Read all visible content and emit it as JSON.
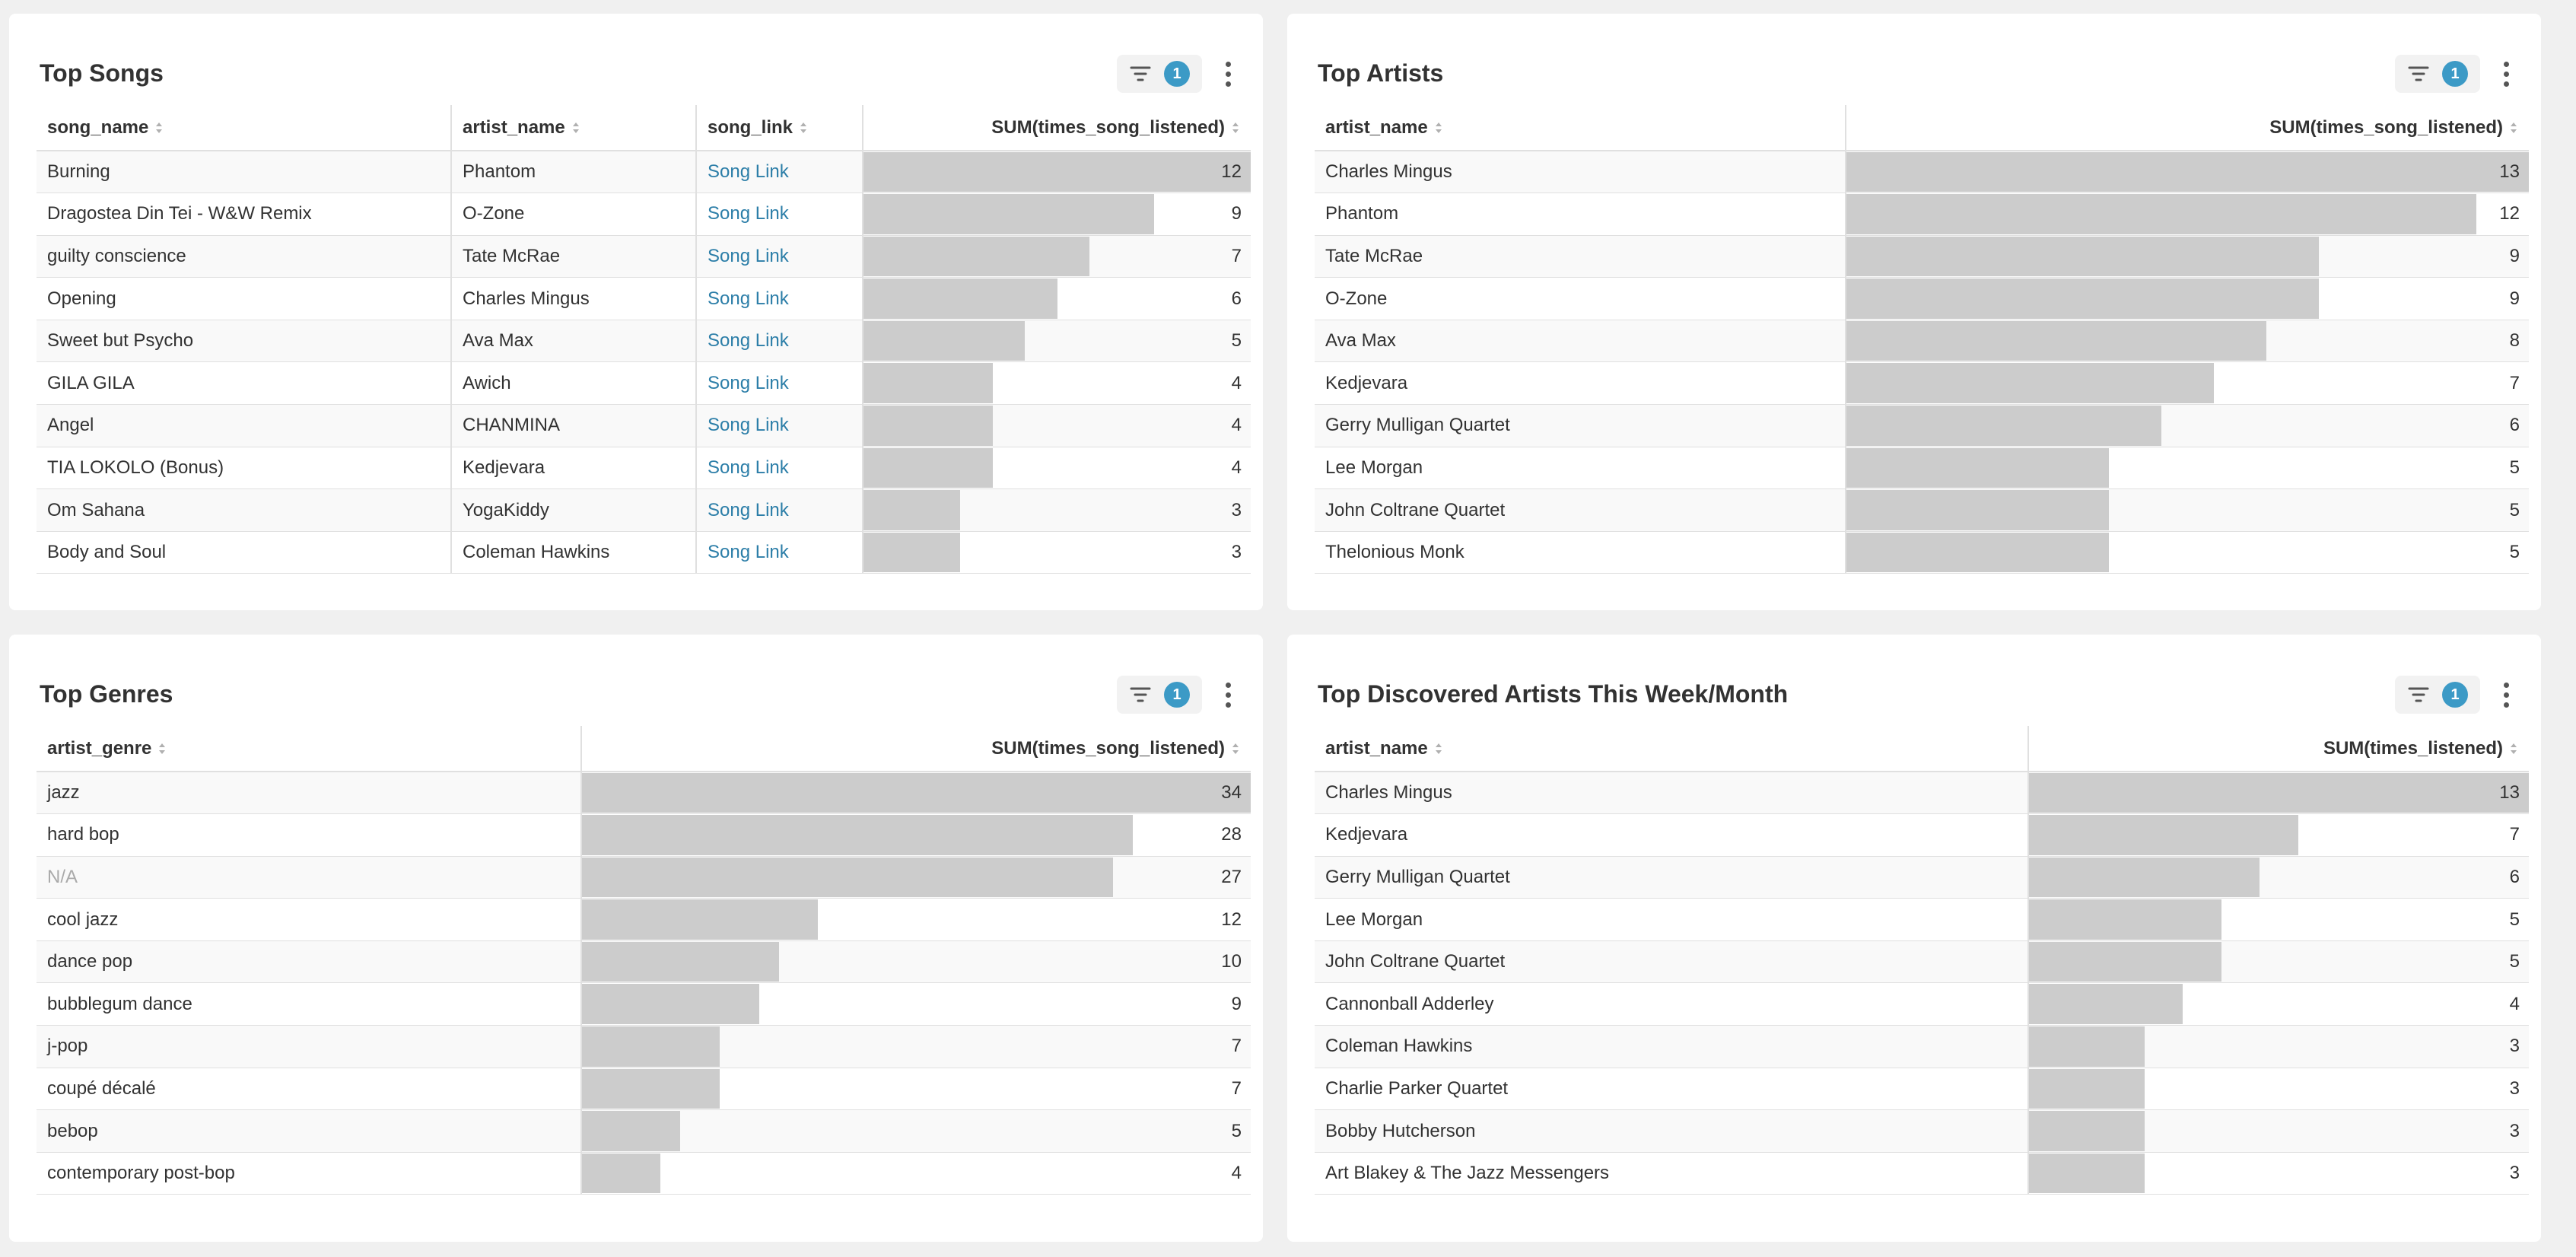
{
  "panels": [
    {
      "title": "Top Songs",
      "filter_count": "1",
      "columns": [
        "song_name",
        "artist_name",
        "song_link",
        "SUM(times_song_listened)"
      ],
      "max": 12,
      "rows": [
        {
          "song_name": "Burning",
          "artist_name": "Phantom",
          "song_link": "Song Link",
          "value": 12
        },
        {
          "song_name": "Dragostea Din Tei - W&W Remix",
          "artist_name": "O-Zone",
          "song_link": "Song Link",
          "value": 9
        },
        {
          "song_name": "guilty conscience",
          "artist_name": "Tate McRae",
          "song_link": "Song Link",
          "value": 7
        },
        {
          "song_name": "Opening",
          "artist_name": "Charles Mingus",
          "song_link": "Song Link",
          "value": 6
        },
        {
          "song_name": "Sweet but Psycho",
          "artist_name": "Ava Max",
          "song_link": "Song Link",
          "value": 5
        },
        {
          "song_name": "GILA GILA",
          "artist_name": "Awich",
          "song_link": "Song Link",
          "value": 4
        },
        {
          "song_name": "Angel",
          "artist_name": "CHANMINA",
          "song_link": "Song Link",
          "value": 4
        },
        {
          "song_name": "TIA LOKOLO (Bonus)",
          "artist_name": "Kedjevara",
          "song_link": "Song Link",
          "value": 4
        },
        {
          "song_name": "Om Sahana",
          "artist_name": "YogaKiddy",
          "song_link": "Song Link",
          "value": 3
        },
        {
          "song_name": "Body and Soul",
          "artist_name": "Coleman Hawkins",
          "song_link": "Song Link",
          "value": 3
        }
      ]
    },
    {
      "title": "Top Artists",
      "filter_count": "1",
      "columns": [
        "artist_name",
        "SUM(times_song_listened)"
      ],
      "max": 13,
      "rows": [
        {
          "artist_name": "Charles Mingus",
          "value": 13
        },
        {
          "artist_name": "Phantom",
          "value": 12
        },
        {
          "artist_name": "Tate McRae",
          "value": 9
        },
        {
          "artist_name": "O-Zone",
          "value": 9
        },
        {
          "artist_name": "Ava Max",
          "value": 8
        },
        {
          "artist_name": "Kedjevara",
          "value": 7
        },
        {
          "artist_name": "Gerry Mulligan Quartet",
          "value": 6
        },
        {
          "artist_name": "Lee Morgan",
          "value": 5
        },
        {
          "artist_name": "John Coltrane Quartet",
          "value": 5
        },
        {
          "artist_name": "Thelonious Monk",
          "value": 5
        }
      ]
    },
    {
      "title": "Top Genres",
      "filter_count": "1",
      "columns": [
        "artist_genre",
        "SUM(times_song_listened)"
      ],
      "max": 34,
      "rows": [
        {
          "artist_genre": "jazz",
          "value": 34
        },
        {
          "artist_genre": "hard bop",
          "value": 28
        },
        {
          "artist_genre": "N/A",
          "value": 27,
          "muted": true
        },
        {
          "artist_genre": "cool jazz",
          "value": 12
        },
        {
          "artist_genre": "dance pop",
          "value": 10
        },
        {
          "artist_genre": "bubblegum dance",
          "value": 9
        },
        {
          "artist_genre": "j-pop",
          "value": 7
        },
        {
          "artist_genre": "coupé décalé",
          "value": 7
        },
        {
          "artist_genre": "bebop",
          "value": 5
        },
        {
          "artist_genre": "contemporary post-bop",
          "value": 4
        }
      ]
    },
    {
      "title": "Top Discovered Artists This Week/Month",
      "filter_count": "1",
      "columns": [
        "artist_name",
        "SUM(times_listened)"
      ],
      "max": 13,
      "rows": [
        {
          "artist_name": "Charles Mingus",
          "value": 13
        },
        {
          "artist_name": "Kedjevara",
          "value": 7
        },
        {
          "artist_name": "Gerry Mulligan Quartet",
          "value": 6
        },
        {
          "artist_name": "Lee Morgan",
          "value": 5
        },
        {
          "artist_name": "John Coltrane Quartet",
          "value": 5
        },
        {
          "artist_name": "Cannonball Adderley",
          "value": 4
        },
        {
          "artist_name": "Coleman Hawkins",
          "value": 3
        },
        {
          "artist_name": "Charlie Parker Quartet",
          "value": 3
        },
        {
          "artist_name": "Bobby Hutcherson",
          "value": 3
        },
        {
          "artist_name": "Art Blakey & The Jazz Messengers",
          "value": 3
        }
      ]
    }
  ],
  "icons": {
    "filter": "filter-icon",
    "more": "more-vertical-icon",
    "sort": "sort-icon"
  },
  "colors": {
    "bar": "#cccccc",
    "badge": "#3c9ac6",
    "link": "#2c7ea8",
    "panel_bg": "#ffffff",
    "page_bg": "#f0f0f0"
  }
}
